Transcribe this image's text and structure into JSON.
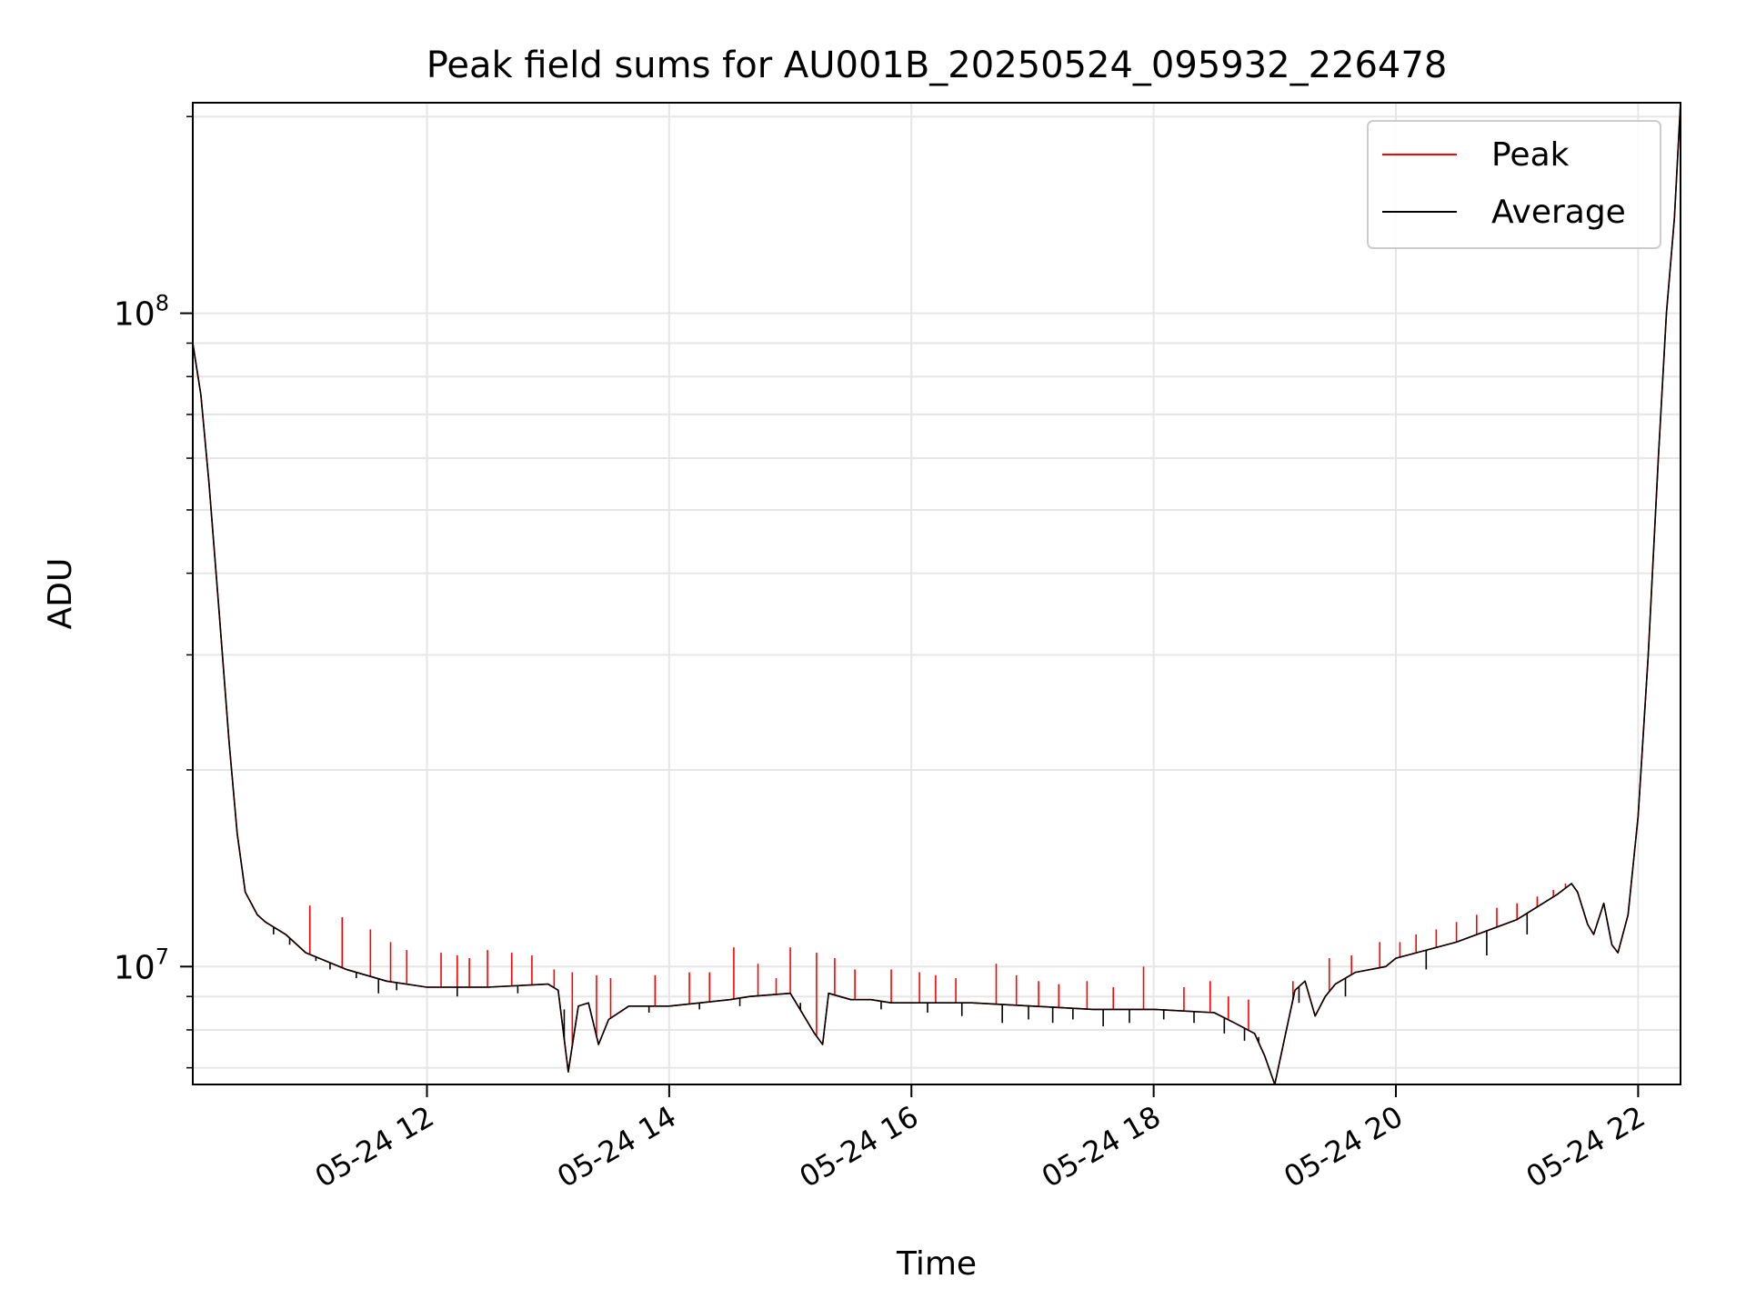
{
  "chart_data": {
    "type": "line",
    "title": "Peak field sums for AU001B_20250524_095932_226478",
    "xlabel": "Time",
    "ylabel": "ADU",
    "x_type": "datetime",
    "xlim": [
      "2025-05-24 10:04",
      "2025-05-24 22:21"
    ],
    "ylim": [
      6600000,
      210000000
    ],
    "y_scale": "log",
    "grid": true,
    "legend_position": "top-right",
    "x_ticks": [
      {
        "value": "2025-05-24 12:00",
        "label": "05-24 12"
      },
      {
        "value": "2025-05-24 14:00",
        "label": "05-24 14"
      },
      {
        "value": "2025-05-24 16:00",
        "label": "05-24 16"
      },
      {
        "value": "2025-05-24 18:00",
        "label": "05-24 18"
      },
      {
        "value": "2025-05-24 20:00",
        "label": "05-24 20"
      },
      {
        "value": "2025-05-24 22:00",
        "label": "05-24 22"
      }
    ],
    "y_ticks": [
      {
        "value": 10000000,
        "base": "10",
        "exp": "7"
      },
      {
        "value": 100000000,
        "base": "10",
        "exp": "8"
      }
    ],
    "series": [
      {
        "name": "Peak",
        "color": "#ff0000",
        "x": [
          "2025-05-24 10:04",
          "2025-05-24 10:08",
          "2025-05-24 10:12",
          "2025-05-24 10:17",
          "2025-05-24 10:22",
          "2025-05-24 10:26",
          "2025-05-24 10:30",
          "2025-05-24 10:36",
          "2025-05-24 10:40",
          "2025-05-24 10:50",
          "2025-05-24 11:00",
          "2025-05-24 11:20",
          "2025-05-24 11:40",
          "2025-05-24 12:00",
          "2025-05-24 12:30",
          "2025-05-24 13:00",
          "2025-05-24 13:05",
          "2025-05-24 13:10",
          "2025-05-24 13:15",
          "2025-05-24 13:20",
          "2025-05-24 13:25",
          "2025-05-24 13:30",
          "2025-05-24 13:40",
          "2025-05-24 14:00",
          "2025-05-24 14:30",
          "2025-05-24 14:40",
          "2025-05-24 15:00",
          "2025-05-24 15:12",
          "2025-05-24 15:16",
          "2025-05-24 15:19",
          "2025-05-24 15:30",
          "2025-05-24 15:40",
          "2025-05-24 15:50",
          "2025-05-24 16:00",
          "2025-05-24 16:30",
          "2025-05-24 17:00",
          "2025-05-24 17:30",
          "2025-05-24 18:00",
          "2025-05-24 18:30",
          "2025-05-24 18:40",
          "2025-05-24 18:50",
          "2025-05-24 18:55",
          "2025-05-24 19:00",
          "2025-05-24 19:05",
          "2025-05-24 19:10",
          "2025-05-24 19:15",
          "2025-05-24 19:20",
          "2025-05-24 19:25",
          "2025-05-24 19:30",
          "2025-05-24 19:40",
          "2025-05-24 19:55",
          "2025-05-24 20:00",
          "2025-05-24 20:30",
          "2025-05-24 21:00",
          "2025-05-24 21:20",
          "2025-05-24 21:27",
          "2025-05-24 21:30",
          "2025-05-24 21:35",
          "2025-05-24 21:38",
          "2025-05-24 21:43",
          "2025-05-24 21:47",
          "2025-05-24 21:50",
          "2025-05-24 21:55",
          "2025-05-24 22:00",
          "2025-05-24 22:05",
          "2025-05-24 22:10",
          "2025-05-24 22:14",
          "2025-05-24 22:18",
          "2025-05-24 22:21"
        ],
        "y": [
          90000000,
          75000000,
          55000000,
          35000000,
          22000000,
          16000000,
          13000000,
          12000000,
          11700000,
          11200000,
          10500000,
          9900000,
          9500000,
          9300000,
          9300000,
          9400000,
          9200000,
          6900000,
          8700000,
          8800000,
          7600000,
          8300000,
          8700000,
          8700000,
          8900000,
          9000000,
          9100000,
          7900000,
          7600000,
          9100000,
          8900000,
          8900000,
          8800000,
          8800000,
          8800000,
          8700000,
          8600000,
          8600000,
          8500000,
          8200000,
          7900000,
          7300000,
          6600000,
          7800000,
          9200000,
          9500000,
          8400000,
          9000000,
          9400000,
          9800000,
          10000000,
          10300000,
          10900000,
          11800000,
          12900000,
          13400000,
          13000000,
          11600000,
          11200000,
          12500000,
          10800000,
          10500000,
          12000000,
          17000000,
          30000000,
          60000000,
          100000000,
          140000000,
          210000000
        ],
        "spikes": [
          [
            "2025-05-24 11:02",
            12400000
          ],
          [
            "2025-05-24 11:18",
            11900000
          ],
          [
            "2025-05-24 11:32",
            11400000
          ],
          [
            "2025-05-24 11:42",
            10900000
          ],
          [
            "2025-05-24 11:50",
            10600000
          ],
          [
            "2025-05-24 12:07",
            10500000
          ],
          [
            "2025-05-24 12:15",
            10400000
          ],
          [
            "2025-05-24 12:21",
            10300000
          ],
          [
            "2025-05-24 12:30",
            10600000
          ],
          [
            "2025-05-24 12:42",
            10500000
          ],
          [
            "2025-05-24 12:52",
            10400000
          ],
          [
            "2025-05-24 13:03",
            9900000
          ],
          [
            "2025-05-24 13:12",
            9800000
          ],
          [
            "2025-05-24 13:24",
            9700000
          ],
          [
            "2025-05-24 13:31",
            9600000
          ],
          [
            "2025-05-24 13:53",
            9700000
          ],
          [
            "2025-05-24 14:10",
            9800000
          ],
          [
            "2025-05-24 14:20",
            9800000
          ],
          [
            "2025-05-24 14:32",
            10700000
          ],
          [
            "2025-05-24 14:44",
            10100000
          ],
          [
            "2025-05-24 14:53",
            9600000
          ],
          [
            "2025-05-24 15:00",
            10700000
          ],
          [
            "2025-05-24 15:13",
            10500000
          ],
          [
            "2025-05-24 15:22",
            10300000
          ],
          [
            "2025-05-24 15:32",
            9900000
          ],
          [
            "2025-05-24 15:50",
            9900000
          ],
          [
            "2025-05-24 16:04",
            9800000
          ],
          [
            "2025-05-24 16:12",
            9700000
          ],
          [
            "2025-05-24 16:22",
            9600000
          ],
          [
            "2025-05-24 16:42",
            10100000
          ],
          [
            "2025-05-24 16:52",
            9700000
          ],
          [
            "2025-05-24 17:03",
            9500000
          ],
          [
            "2025-05-24 17:13",
            9400000
          ],
          [
            "2025-05-24 17:27",
            9500000
          ],
          [
            "2025-05-24 17:40",
            9300000
          ],
          [
            "2025-05-24 17:55",
            10000000
          ],
          [
            "2025-05-24 18:15",
            9300000
          ],
          [
            "2025-05-24 18:28",
            9500000
          ],
          [
            "2025-05-24 18:37",
            9000000
          ],
          [
            "2025-05-24 18:47",
            8900000
          ],
          [
            "2025-05-24 19:09",
            9500000
          ],
          [
            "2025-05-24 19:27",
            10300000
          ],
          [
            "2025-05-24 19:38",
            10400000
          ],
          [
            "2025-05-24 19:52",
            10900000
          ],
          [
            "2025-05-24 20:02",
            10900000
          ],
          [
            "2025-05-24 20:10",
            11200000
          ],
          [
            "2025-05-24 20:20",
            11400000
          ],
          [
            "2025-05-24 20:30",
            11700000
          ],
          [
            "2025-05-24 20:40",
            12000000
          ],
          [
            "2025-05-24 20:50",
            12300000
          ],
          [
            "2025-05-24 21:00",
            12500000
          ],
          [
            "2025-05-24 21:10",
            12800000
          ],
          [
            "2025-05-24 21:18",
            13100000
          ],
          [
            "2025-05-24 21:24",
            13400000
          ]
        ]
      },
      {
        "name": "Average",
        "color": "#000000",
        "x": [
          "2025-05-24 10:04",
          "2025-05-24 10:08",
          "2025-05-24 10:12",
          "2025-05-24 10:17",
          "2025-05-24 10:22",
          "2025-05-24 10:26",
          "2025-05-24 10:30",
          "2025-05-24 10:36",
          "2025-05-24 10:40",
          "2025-05-24 10:50",
          "2025-05-24 11:00",
          "2025-05-24 11:20",
          "2025-05-24 11:40",
          "2025-05-24 12:00",
          "2025-05-24 12:30",
          "2025-05-24 13:00",
          "2025-05-24 13:05",
          "2025-05-24 13:10",
          "2025-05-24 13:15",
          "2025-05-24 13:20",
          "2025-05-24 13:25",
          "2025-05-24 13:30",
          "2025-05-24 13:40",
          "2025-05-24 14:00",
          "2025-05-24 14:30",
          "2025-05-24 14:40",
          "2025-05-24 15:00",
          "2025-05-24 15:12",
          "2025-05-24 15:16",
          "2025-05-24 15:19",
          "2025-05-24 15:30",
          "2025-05-24 15:40",
          "2025-05-24 15:50",
          "2025-05-24 16:00",
          "2025-05-24 16:30",
          "2025-05-24 17:00",
          "2025-05-24 17:30",
          "2025-05-24 18:00",
          "2025-05-24 18:30",
          "2025-05-24 18:40",
          "2025-05-24 18:50",
          "2025-05-24 18:55",
          "2025-05-24 19:00",
          "2025-05-24 19:05",
          "2025-05-24 19:10",
          "2025-05-24 19:15",
          "2025-05-24 19:20",
          "2025-05-24 19:25",
          "2025-05-24 19:30",
          "2025-05-24 19:40",
          "2025-05-24 19:55",
          "2025-05-24 20:00",
          "2025-05-24 20:30",
          "2025-05-24 21:00",
          "2025-05-24 21:20",
          "2025-05-24 21:27",
          "2025-05-24 21:30",
          "2025-05-24 21:35",
          "2025-05-24 21:38",
          "2025-05-24 21:43",
          "2025-05-24 21:47",
          "2025-05-24 21:50",
          "2025-05-24 21:55",
          "2025-05-24 22:00",
          "2025-05-24 22:05",
          "2025-05-24 22:10",
          "2025-05-24 22:14",
          "2025-05-24 22:18",
          "2025-05-24 22:21"
        ],
        "y": [
          90000000,
          75000000,
          55000000,
          35000000,
          22000000,
          16000000,
          13000000,
          12000000,
          11700000,
          11200000,
          10500000,
          9900000,
          9500000,
          9300000,
          9300000,
          9400000,
          9200000,
          6900000,
          8700000,
          8800000,
          7600000,
          8300000,
          8700000,
          8700000,
          8900000,
          9000000,
          9100000,
          7900000,
          7600000,
          9100000,
          8900000,
          8900000,
          8800000,
          8800000,
          8800000,
          8700000,
          8600000,
          8600000,
          8500000,
          8200000,
          7900000,
          7300000,
          6600000,
          7800000,
          9200000,
          9500000,
          8400000,
          9000000,
          9400000,
          9800000,
          10000000,
          10300000,
          10900000,
          11800000,
          12900000,
          13400000,
          13000000,
          11600000,
          11200000,
          12500000,
          10800000,
          10500000,
          12000000,
          17000000,
          30000000,
          60000000,
          100000000,
          140000000,
          210000000
        ],
        "dips": [
          [
            "2025-05-24 10:44",
            11200000
          ],
          [
            "2025-05-24 10:52",
            10800000
          ],
          [
            "2025-05-24 11:05",
            10200000
          ],
          [
            "2025-05-24 11:12",
            9900000
          ],
          [
            "2025-05-24 11:25",
            9600000
          ],
          [
            "2025-05-24 11:36",
            9100000
          ],
          [
            "2025-05-24 11:45",
            9200000
          ],
          [
            "2025-05-24 12:15",
            9000000
          ],
          [
            "2025-05-24 12:45",
            9100000
          ],
          [
            "2025-05-24 13:08",
            8600000
          ],
          [
            "2025-05-24 13:35",
            8500000
          ],
          [
            "2025-05-24 13:50",
            8500000
          ],
          [
            "2025-05-24 14:15",
            8600000
          ],
          [
            "2025-05-24 14:35",
            8700000
          ],
          [
            "2025-05-24 15:05",
            8800000
          ],
          [
            "2025-05-24 15:45",
            8600000
          ],
          [
            "2025-05-24 16:08",
            8500000
          ],
          [
            "2025-05-24 16:25",
            8400000
          ],
          [
            "2025-05-24 16:45",
            8200000
          ],
          [
            "2025-05-24 16:58",
            8300000
          ],
          [
            "2025-05-24 17:10",
            8200000
          ],
          [
            "2025-05-24 17:20",
            8300000
          ],
          [
            "2025-05-24 17:35",
            8100000
          ],
          [
            "2025-05-24 17:48",
            8200000
          ],
          [
            "2025-05-24 18:05",
            8300000
          ],
          [
            "2025-05-24 18:20",
            8200000
          ],
          [
            "2025-05-24 18:35",
            7900000
          ],
          [
            "2025-05-24 18:45",
            7700000
          ],
          [
            "2025-05-24 18:52",
            7800000
          ],
          [
            "2025-05-24 19:12",
            8800000
          ],
          [
            "2025-05-24 19:35",
            9000000
          ],
          [
            "2025-05-24 20:15",
            9900000
          ],
          [
            "2025-05-24 20:45",
            10400000
          ],
          [
            "2025-05-24 21:05",
            11200000
          ]
        ]
      }
    ]
  }
}
